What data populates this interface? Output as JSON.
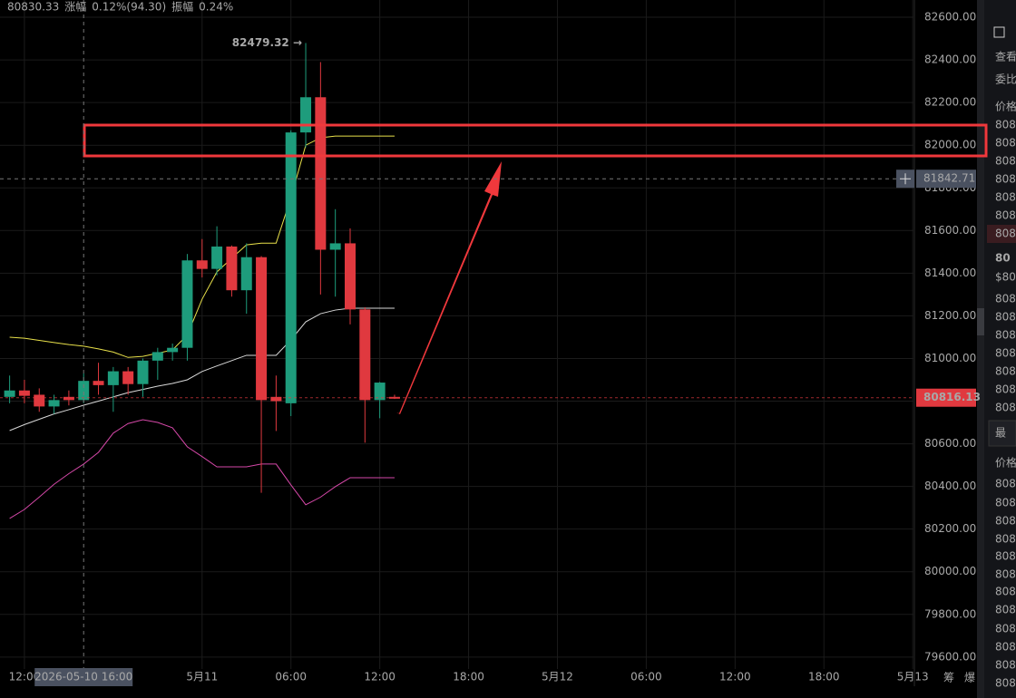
{
  "chart_data": {
    "type": "candlestick",
    "x": [
      -1,
      0,
      1,
      2,
      3,
      4,
      5,
      6,
      7,
      8,
      9,
      10,
      11,
      12,
      13,
      14,
      15,
      16,
      17,
      18,
      19,
      20,
      21,
      22,
      23,
      24,
      25
    ],
    "open": [
      80820,
      80850,
      80830,
      80775,
      80820,
      80805,
      80895,
      80875,
      80940,
      80880,
      80990,
      81030,
      81050,
      81460,
      81420,
      81525,
      81320,
      81475,
      80820,
      80790,
      82060,
      82225,
      81510,
      81540,
      81230,
      80805,
      80820
    ],
    "high": [
      80920,
      80900,
      80860,
      80830,
      80850,
      80930,
      80980,
      80960,
      80960,
      81000,
      81050,
      81070,
      81490,
      81560,
      81620,
      81530,
      81540,
      81480,
      80920,
      82070,
      82479.32,
      82390,
      81700,
      81610,
      81240,
      80890,
      80830
    ],
    "low": [
      80790,
      80790,
      80750,
      80740,
      80780,
      80790,
      80830,
      80750,
      80830,
      80820,
      80900,
      80990,
      80990,
      81380,
      81390,
      81290,
      81210,
      80370,
      80660,
      80730,
      81990,
      81300,
      81290,
      81160,
      80605,
      80720,
      80810
    ],
    "close": [
      80850,
      80825,
      80775,
      80805,
      80805,
      80895,
      80875,
      80940,
      80880,
      80990,
      81030,
      81050,
      81460,
      81420,
      81525,
      81320,
      81475,
      80805,
      80800,
      82060,
      82225,
      81510,
      81540,
      81230,
      80805,
      80887,
      80816.13
    ],
    "up_color": "#1e9c7c",
    "down_color": "#e0393f",
    "lines": [
      {
        "color": "#e8e04a",
        "values": [
          81100,
          81095,
          81085,
          81075,
          81065,
          81058,
          81045,
          81030,
          81005,
          81010,
          81025,
          81040,
          81110,
          81278,
          81406,
          81470,
          81533,
          81541,
          81541,
          81754,
          82000,
          82035,
          82043,
          82043,
          82043,
          82043,
          82043
        ]
      },
      {
        "color": "#d8d8d8",
        "values": [
          80662,
          80690,
          80715,
          80740,
          80760,
          80781,
          80800,
          80820,
          80840,
          80855,
          80870,
          80883,
          80900,
          80939,
          80965,
          80990,
          81015,
          81015,
          81015,
          81087,
          81172,
          81210,
          81227,
          81236,
          81236,
          81236,
          81236
        ]
      },
      {
        "color": "#d548a8",
        "values": [
          80250,
          80292,
          80350,
          80410,
          80460,
          80505,
          80560,
          80650,
          80695,
          80713,
          80700,
          80675,
          80586,
          80540,
          80492,
          80492,
          80492,
          80505,
          80505,
          80407,
          80314,
          80350,
          80399,
          80441,
          80441,
          80441,
          80441
        ]
      }
    ],
    "xlim": [
      -1.65,
      60.05
    ],
    "xticks": [
      {
        "value": 0,
        "label": "12:00"
      },
      {
        "value": 12,
        "label": "5月11"
      },
      {
        "value": 18,
        "label": "06:00"
      },
      {
        "value": 24,
        "label": "12:00"
      },
      {
        "value": 30,
        "label": "18:00"
      },
      {
        "value": 36,
        "label": "5月12"
      },
      {
        "value": 42,
        "label": "06:00"
      },
      {
        "value": 48,
        "label": "12:00"
      },
      {
        "value": 54,
        "label": "18:00"
      },
      {
        "value": 60,
        "label": "5月13"
      }
    ],
    "ylim": [
      79544,
      82681
    ],
    "yticks": [
      {
        "value": 79600,
        "label": "79600.00"
      },
      {
        "value": 79800,
        "label": "79800.00"
      },
      {
        "value": 80000,
        "label": "80000.00"
      },
      {
        "value": 80200,
        "label": "80200.00"
      },
      {
        "value": 80400,
        "label": "80400.00"
      },
      {
        "value": 80600,
        "label": "80600.00"
      },
      {
        "value": 80800,
        "label": "80800.00"
      },
      {
        "value": 81000,
        "label": "81000.00"
      },
      {
        "value": 81200,
        "label": "81200.00"
      },
      {
        "value": 81400,
        "label": "81400.00"
      },
      {
        "value": 81600,
        "label": "81600.00"
      },
      {
        "value": 81800,
        "label": "81800.00"
      },
      {
        "value": 82000,
        "label": "82000.00"
      },
      {
        "value": 82200,
        "label": "82200.00"
      },
      {
        "value": 82400,
        "label": "82400.00"
      },
      {
        "value": 82600,
        "label": "82600.00"
      }
    ],
    "grid": true,
    "peak_label": "82479.32 →",
    "last_price": 80816.13,
    "crosshair": {
      "x": 4,
      "x_label": "2026-05-10 16:00",
      "y": 81842.71
    }
  },
  "header": [
    {
      "text": "80830.33",
      "color": "#5fae98"
    },
    {
      "text": "涨幅",
      "color": "#8a8a8a"
    },
    {
      "text": "0.12%(94.30)",
      "color": "#5fae98"
    },
    {
      "text": "振幅",
      "color": "#8a8a8a"
    },
    {
      "text": "0.24%",
      "color": "#5fae98"
    }
  ],
  "footer": [
    "筹",
    "爆"
  ],
  "order_book": [
    {
      "text": "查看",
      "color": "#e6e6e6"
    },
    {
      "text": "委比",
      "color": "#e6e6e6"
    },
    {
      "text": "价格",
      "color": "#bbbbbb"
    },
    {
      "text": "808",
      "color": "#e0393f"
    },
    {
      "text": "808",
      "color": "#e0393f"
    },
    {
      "text": "808",
      "color": "#e0393f"
    },
    {
      "text": "808",
      "color": "#e0393f"
    },
    {
      "text": "808",
      "color": "#e0393f"
    },
    {
      "text": "808",
      "color": "#e0393f"
    },
    {
      "text": "808",
      "color": "#e0393f"
    },
    {
      "text": "80",
      "color": "#e0393f"
    },
    {
      "text": "$80,",
      "color": "#999999"
    },
    {
      "text": "808",
      "color": "#1e9c7c"
    },
    {
      "text": "808",
      "color": "#1e9c7c"
    },
    {
      "text": "808",
      "color": "#1e9c7c"
    },
    {
      "text": "808",
      "color": "#1e9c7c"
    },
    {
      "text": "808",
      "color": "#1e9c7c"
    },
    {
      "text": "808",
      "color": "#1e9c7c"
    },
    {
      "text": "808",
      "color": "#1e9c7c"
    },
    {
      "text": "最",
      "color": "#e6e6e6"
    },
    {
      "text": "价格",
      "color": "#bbbbbb"
    },
    {
      "text": "808",
      "color": "#e0393f"
    },
    {
      "text": "808",
      "color": "#1e9c7c"
    },
    {
      "text": "808",
      "color": "#1e9c7c"
    },
    {
      "text": "808",
      "color": "#1e9c7c"
    },
    {
      "text": "808",
      "color": "#e0393f"
    },
    {
      "text": "808",
      "color": "#1e9c7c"
    },
    {
      "text": "808",
      "color": "#1e9c7c"
    },
    {
      "text": "808",
      "color": "#1e9c7c"
    },
    {
      "text": "808",
      "color": "#1e9c7c"
    },
    {
      "text": "808",
      "color": "#1e9c7c"
    },
    {
      "text": "808",
      "color": "#e0393f"
    },
    {
      "text": "808",
      "color": "#1e9c7c"
    }
  ]
}
